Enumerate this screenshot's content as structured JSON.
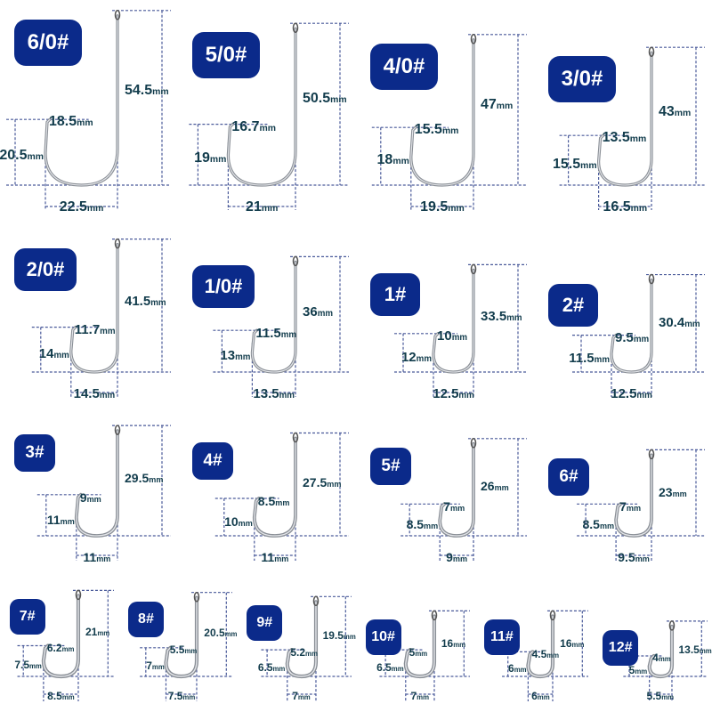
{
  "unit": "mm",
  "colors": {
    "badge": "#0b2a8a",
    "label_text": "#123c4c",
    "dimension_line": "#4a5a9a",
    "hook": "#8a8f96"
  },
  "hooks": [
    {
      "size": "6/0#",
      "length": "54.5",
      "gap": "18.5",
      "height": "20.5",
      "width": "22.5"
    },
    {
      "size": "5/0#",
      "length": "50.5",
      "gap": "16.7",
      "height": "19",
      "width": "21"
    },
    {
      "size": "4/0#",
      "length": "47",
      "gap": "15.5",
      "height": "18",
      "width": "19.5"
    },
    {
      "size": "3/0#",
      "length": "43",
      "gap": "13.5",
      "height": "15.5",
      "width": "16.5"
    },
    {
      "size": "2/0#",
      "length": "41.5",
      "gap": "11.7",
      "height": "14",
      "width": "14.5"
    },
    {
      "size": "1/0#",
      "length": "36",
      "gap": "11.5",
      "height": "13",
      "width": "13.5"
    },
    {
      "size": "1#",
      "length": "33.5",
      "gap": "10",
      "height": "12",
      "width": "12.5"
    },
    {
      "size": "2#",
      "length": "30.4",
      "gap": "9.5",
      "height": "11.5",
      "width": "12.5"
    },
    {
      "size": "3#",
      "length": "29.5",
      "gap": "9",
      "height": "11",
      "width": "11"
    },
    {
      "size": "4#",
      "length": "27.5",
      "gap": "8.5",
      "height": "10",
      "width": "11"
    },
    {
      "size": "5#",
      "length": "26",
      "gap": "7",
      "height": "8.5",
      "width": "9"
    },
    {
      "size": "6#",
      "length": "23",
      "gap": "7",
      "height": "8.5",
      "width": "9.5"
    },
    {
      "size": "7#",
      "length": "21",
      "gap": "6.2",
      "height": "7.5",
      "width": "8.5"
    },
    {
      "size": "8#",
      "length": "20.5",
      "gap": "5.5",
      "height": "7",
      "width": "7.5"
    },
    {
      "size": "9#",
      "length": "19.5",
      "gap": "5.2",
      "height": "6.5",
      "width": "7"
    },
    {
      "size": "10#",
      "length": "16",
      "gap": "5",
      "height": "6.5",
      "width": "7"
    },
    {
      "size": "11#",
      "length": "16",
      "gap": "4.5",
      "height": "6",
      "width": "6"
    },
    {
      "size": "12#",
      "length": "13.5",
      "gap": "4",
      "height": "5",
      "width": "5.5"
    }
  ]
}
